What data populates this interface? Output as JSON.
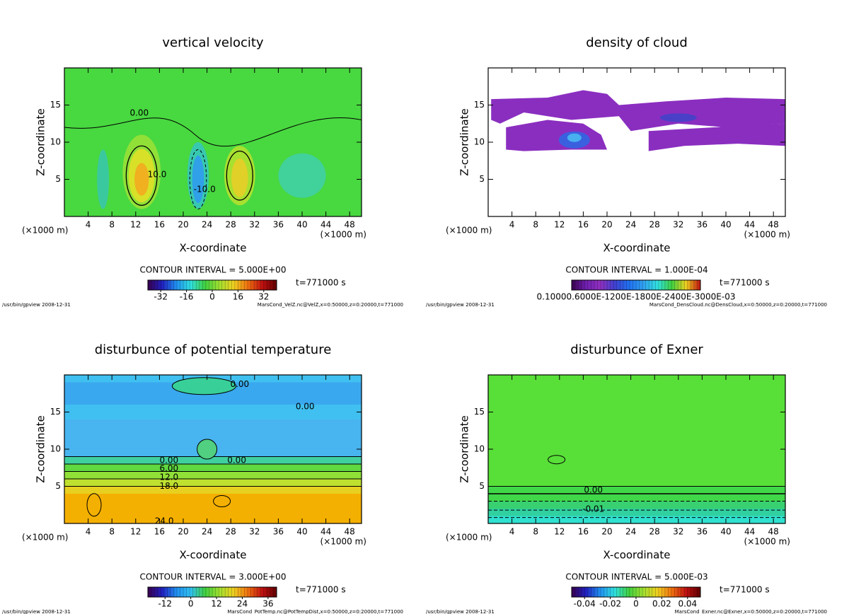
{
  "chart_data": [
    {
      "type": "contour",
      "title": "vertical velocity",
      "xlabel": "X-coordinate",
      "ylabel": "Z-coordinate",
      "x_unit": "(×1000 m)",
      "xlim": [
        0,
        50
      ],
      "ylim": [
        0,
        20
      ],
      "xticks": [
        4,
        8,
        12,
        16,
        20,
        24,
        28,
        32,
        36,
        40,
        44,
        48
      ],
      "yticks": [
        5,
        10,
        15
      ],
      "contour_interval": "CONTOUR INTERVAL = 5.000E+00",
      "clim": [
        -40,
        40
      ],
      "cticks": [
        -32,
        -16,
        0,
        16,
        32
      ],
      "colormap": [
        "#3a0050",
        "#2020c0",
        "#2090f0",
        "#30e0e0",
        "#40d040",
        "#a0e030",
        "#f0d020",
        "#f07010",
        "#c01010",
        "#600000"
      ],
      "time": "t=771000 s",
      "footer_left": "/usr/bin/gpview  2008-12-31",
      "footer_right": "MarsCond_VelZ.nc@VelZ,x=0:50000,z=0:20000,t=771000",
      "annotations": [
        {
          "text": "0.00",
          "x": 12.6,
          "y": 13.9
        },
        {
          "text": "10.0",
          "x": 15.6,
          "y": 5.6
        },
        {
          "text": "-10.0",
          "x": 23.6,
          "y": 3.6
        }
      ]
    },
    {
      "type": "contour",
      "title": "density of cloud",
      "xlabel": "X-coordinate",
      "ylabel": "Z-coordinate",
      "x_unit": "(×1000 m)",
      "xlim": [
        0,
        50
      ],
      "ylim": [
        0,
        20
      ],
      "xticks": [
        4,
        8,
        12,
        16,
        20,
        24,
        28,
        32,
        36,
        40,
        44,
        48
      ],
      "yticks": [
        5,
        10,
        15
      ],
      "contour_interval": "CONTOUR INTERVAL = 1.000E-04",
      "colorbar_label": "0.10000.6000E-1200E-1800E-2400E-3000E-03",
      "colormap": [
        "#3a0050",
        "#7020b0",
        "#9030c0",
        "#4040d0",
        "#2070f0",
        "#30a0f0",
        "#30e0e0",
        "#40d040",
        "#f0d020",
        "#c01010"
      ],
      "time": "t=771000 s",
      "footer_left": "/usr/bin/gpview  2008-12-31",
      "footer_right": "MarsCond_DensCloud.nc@DensCloud,x=0:50000,z=0:20000,t=771000",
      "annotations": []
    },
    {
      "type": "contour",
      "title": "disturbunce of potential temperature",
      "xlabel": "X-coordinate",
      "ylabel": "Z-coordinate",
      "x_unit": "(×1000 m)",
      "xlim": [
        0,
        50
      ],
      "ylim": [
        0,
        20
      ],
      "xticks": [
        4,
        8,
        12,
        16,
        20,
        24,
        28,
        32,
        36,
        40,
        44,
        48
      ],
      "yticks": [
        5,
        10,
        15
      ],
      "contour_interval": "CONTOUR INTERVAL = 3.000E+00",
      "clim": [
        -20,
        40
      ],
      "cticks": [
        -12,
        0,
        12,
        24,
        36
      ],
      "colormap": [
        "#3a0050",
        "#2020c0",
        "#2090f0",
        "#30c0f0",
        "#40d040",
        "#a0e030",
        "#f0d020",
        "#f07010",
        "#c01010",
        "#600000"
      ],
      "time": "t=771000 s",
      "footer_left": "/usr/bin/gpview  2008-12-31",
      "footer_right": "MarsCond_PotTemp.nc@PotTempDist,x=0:50000,z=0:20000,t=771000",
      "annotations": [
        {
          "text": "0.00",
          "x": 29.5,
          "y": 18.7
        },
        {
          "text": "0.00",
          "x": 40.5,
          "y": 15.7
        },
        {
          "text": "0.00",
          "x": 29.0,
          "y": 8.5
        },
        {
          "text": "0.00",
          "x": 17.6,
          "y": 8.5
        },
        {
          "text": "6.00",
          "x": 17.6,
          "y": 7.4
        },
        {
          "text": "12.0",
          "x": 17.6,
          "y": 6.2
        },
        {
          "text": "18.0",
          "x": 17.6,
          "y": 5.0
        },
        {
          "text": "24.0",
          "x": 16.8,
          "y": 0.3
        }
      ]
    },
    {
      "type": "contour",
      "title": "disturbunce of Exner",
      "xlabel": "X-coordinate",
      "ylabel": "Z-coordinate",
      "x_unit": "(×1000 m)",
      "xlim": [
        0,
        50
      ],
      "ylim": [
        0,
        20
      ],
      "xticks": [
        4,
        8,
        12,
        16,
        20,
        24,
        28,
        32,
        36,
        40,
        44,
        48
      ],
      "yticks": [
        5,
        10,
        15
      ],
      "contour_interval": "CONTOUR INTERVAL = 5.000E-03",
      "clim": [
        -0.05,
        0.05
      ],
      "cticks": [
        -0.04,
        -0.02,
        0,
        0.02,
        0.04
      ],
      "colormap": [
        "#3a0050",
        "#2020c0",
        "#2090f0",
        "#30e0e0",
        "#40d040",
        "#a0e030",
        "#f0d020",
        "#f07010",
        "#c01010",
        "#600000"
      ],
      "time": "t=771000 s",
      "footer_left": "/usr/bin/gpview  2008-12-31",
      "footer_right": "MarsCond_Exner.nc@Exner,x=0:50000,z=0:20000,t=771000",
      "annotations": [
        {
          "text": "0.00",
          "x": 17.7,
          "y": 4.5
        },
        {
          "text": "-0.01",
          "x": 17.7,
          "y": 1.9
        }
      ]
    }
  ]
}
